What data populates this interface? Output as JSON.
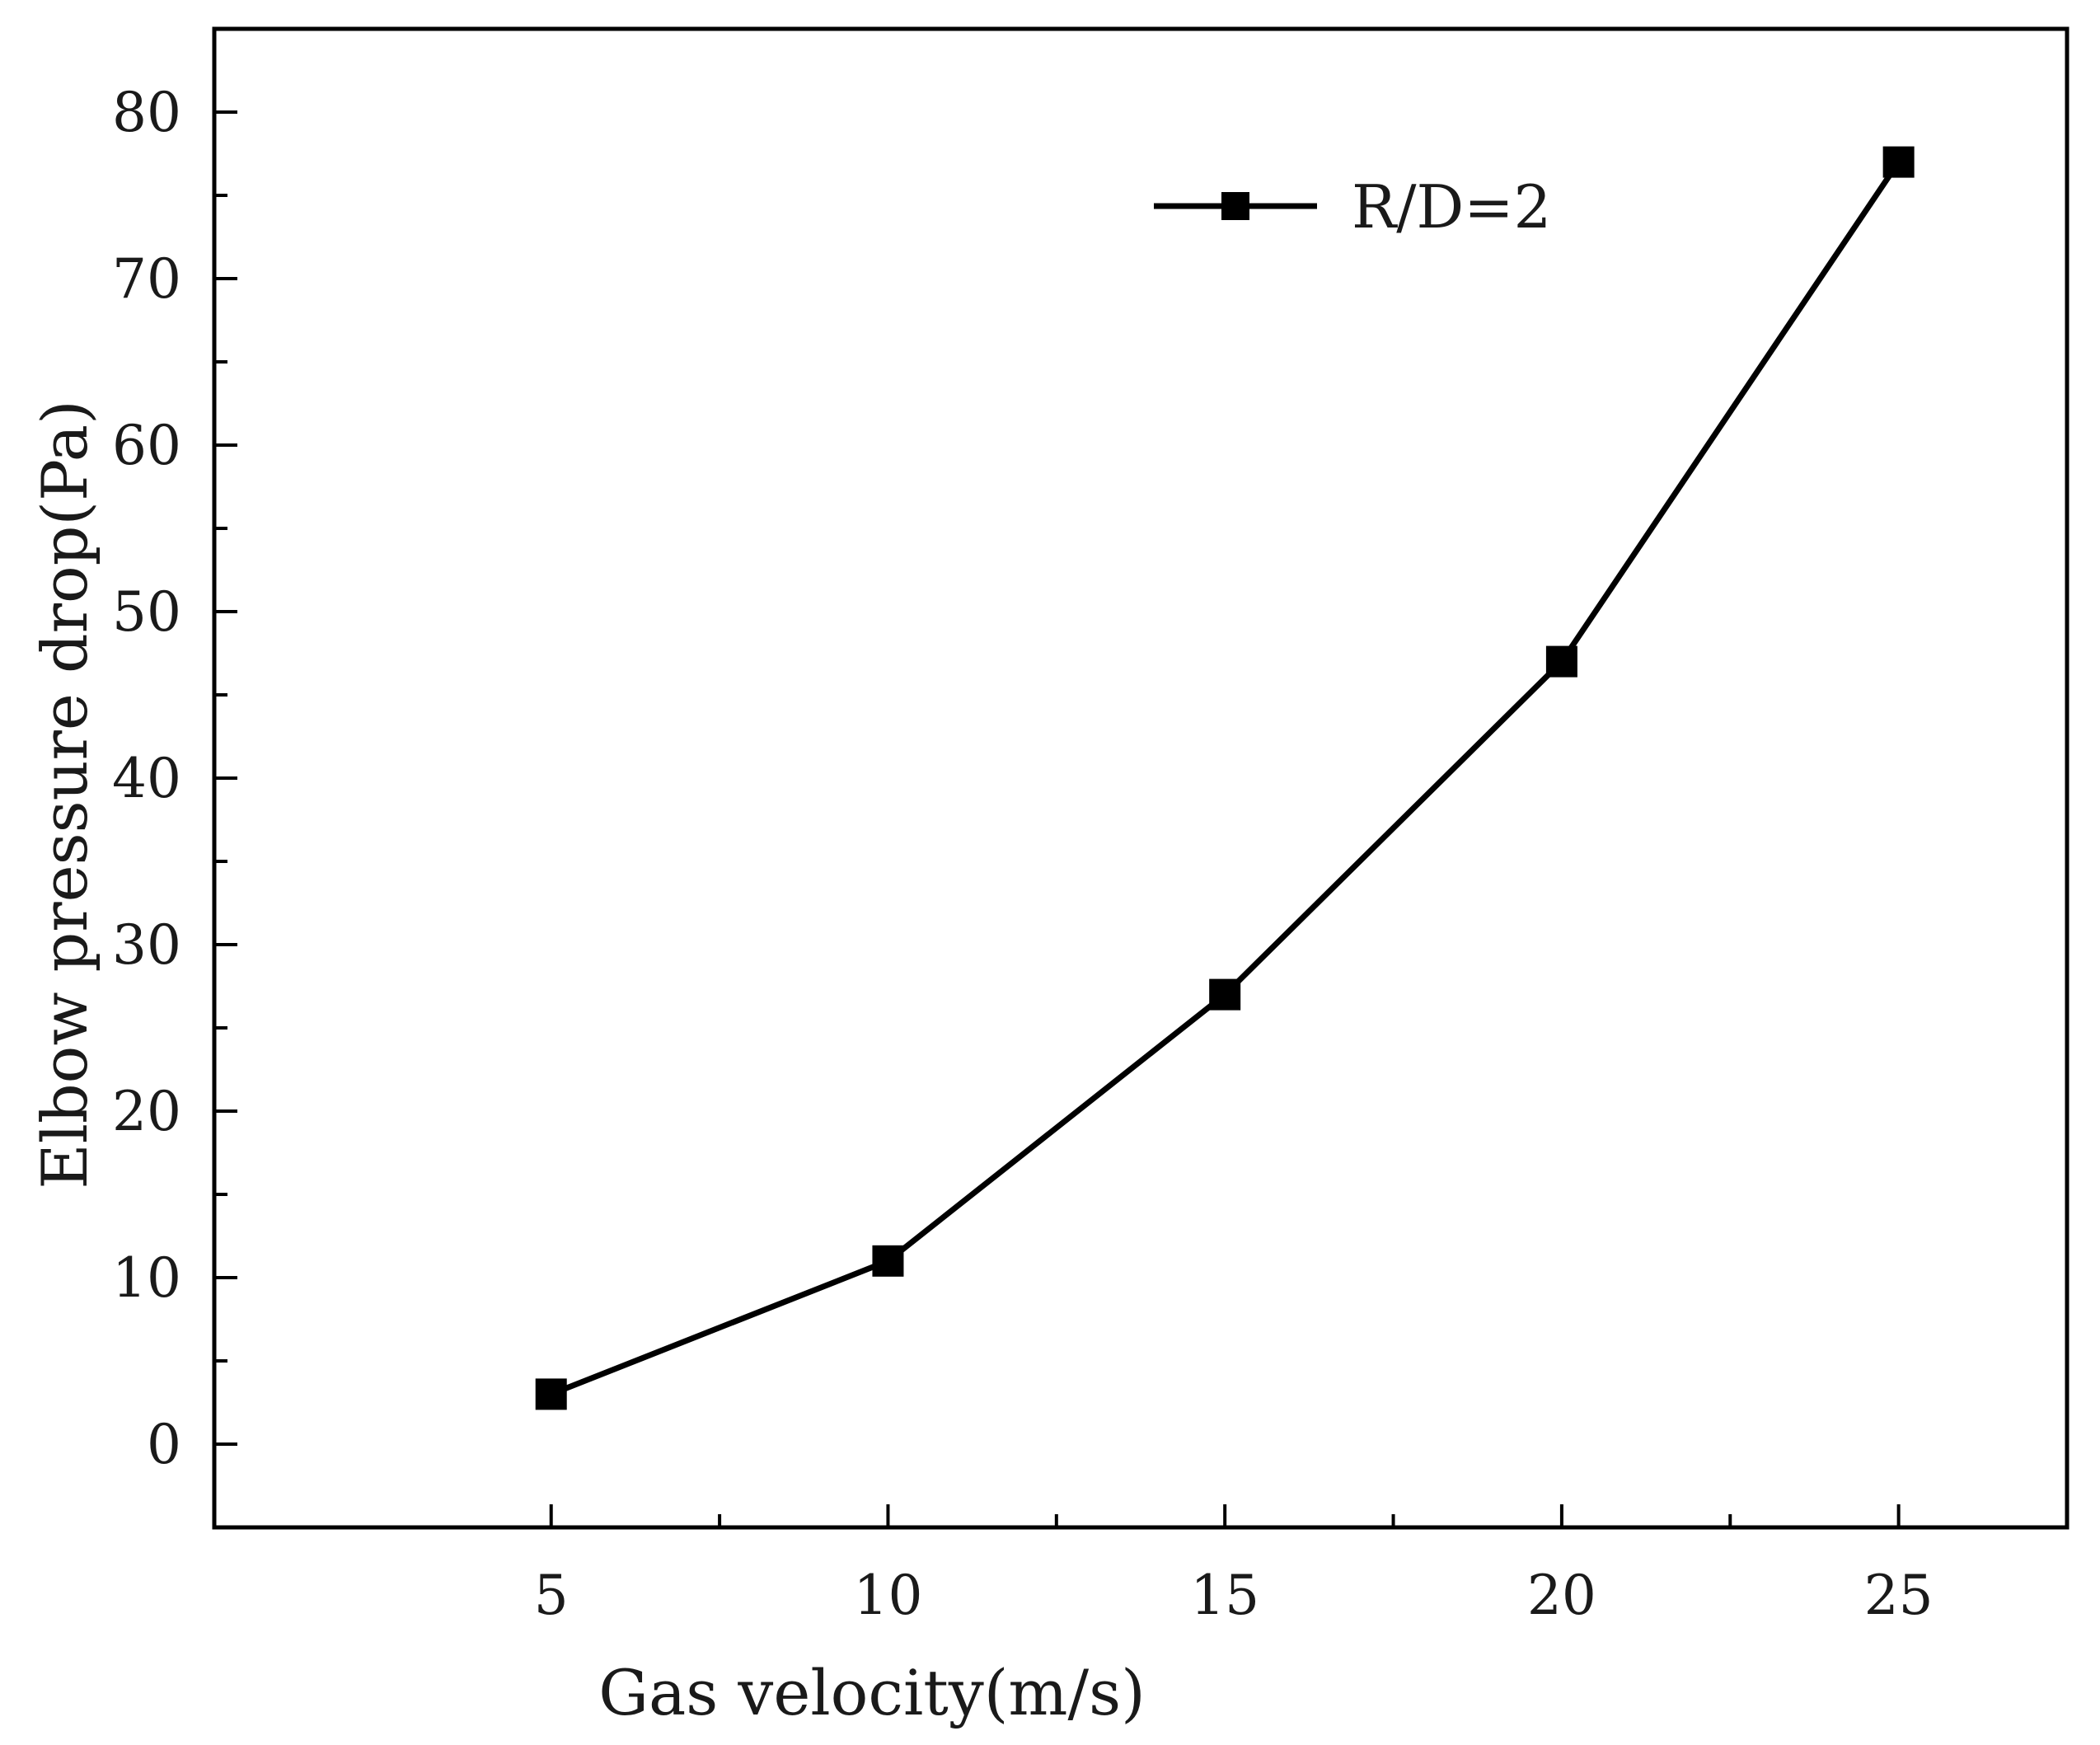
{
  "chart_data": {
    "type": "line",
    "title": "",
    "xlabel": "Gas velocity(m/s)",
    "ylabel": "Elbow pressure drop(Pa)",
    "xlim": [
      0,
      27.5
    ],
    "ylim": [
      -5,
      85
    ],
    "x_ticks": [
      5,
      10,
      15,
      20,
      25
    ],
    "x_minor_ticks": [
      7.5,
      12.5,
      17.5,
      22.5
    ],
    "y_ticks": [
      0,
      10,
      20,
      30,
      40,
      50,
      60,
      70,
      80
    ],
    "y_minor_ticks": [
      5,
      15,
      25,
      35,
      45,
      55,
      65,
      75
    ],
    "grid": false,
    "legend_position": "top-right",
    "series": [
      {
        "name": "R/D=2",
        "marker": "square",
        "color": "#000000",
        "x": [
          5,
          10,
          15,
          20,
          25
        ],
        "y": [
          3,
          11,
          27,
          47,
          77
        ]
      }
    ]
  }
}
